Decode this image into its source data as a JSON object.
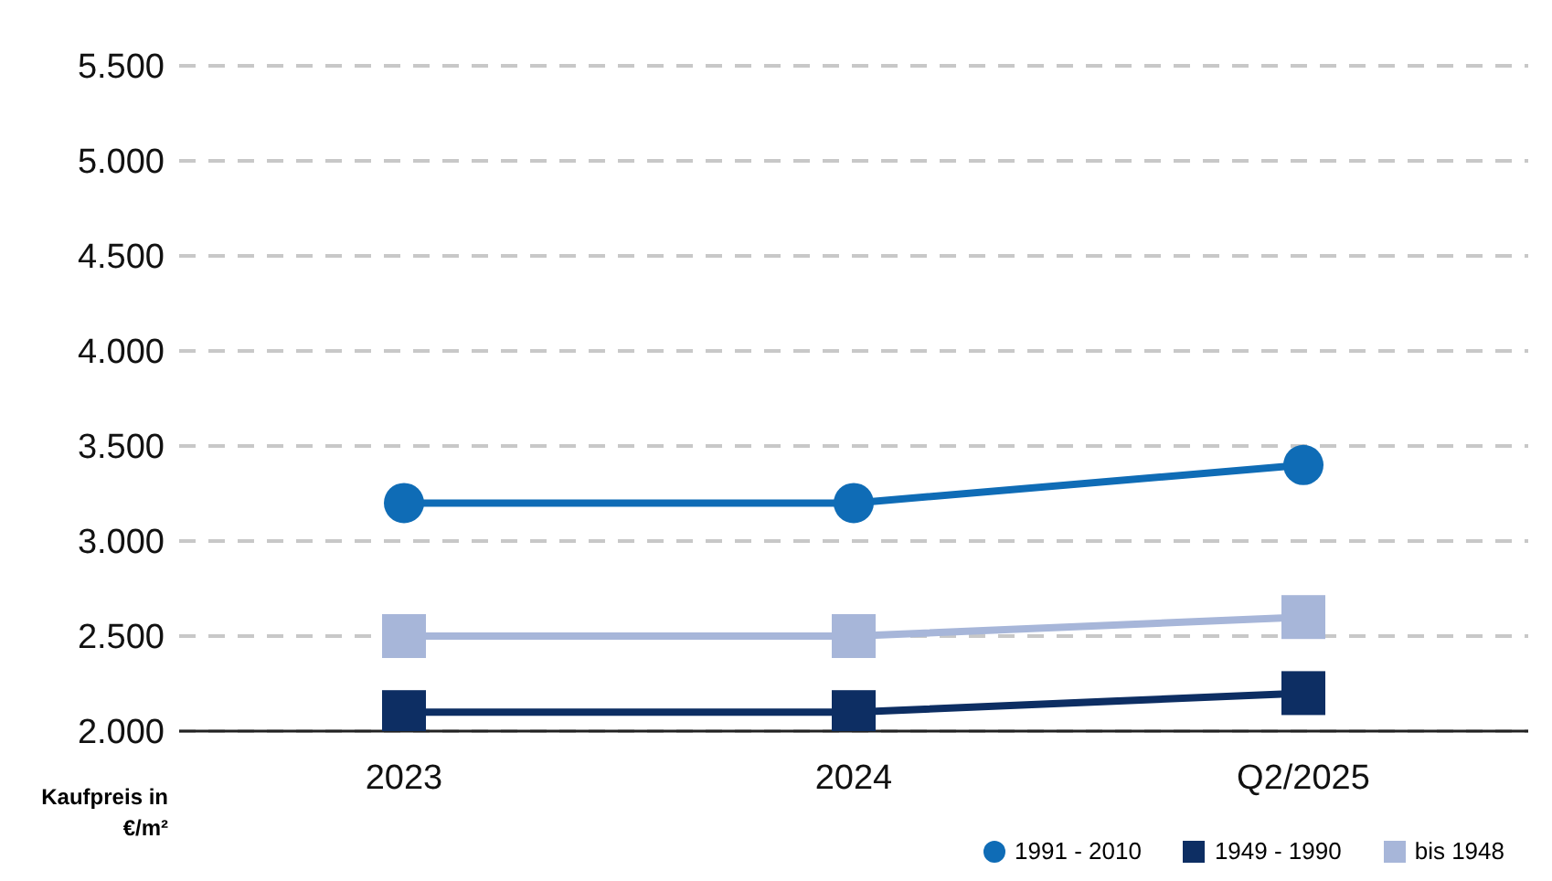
{
  "chart_data": {
    "type": "line",
    "ylabel": "Kaufpreis in €/m²",
    "categories": [
      "2023",
      "2024",
      "Q2/2025"
    ],
    "series": [
      {
        "name": "1991 - 2010",
        "color": "#0f6cb6",
        "values": [
          3200,
          3200,
          3400
        ],
        "marker": "circle"
      },
      {
        "name": "1949 - 1990",
        "color": "#0d2e63",
        "values": [
          2100,
          2100,
          2200
        ],
        "marker": "square"
      },
      {
        "name": "bis 1948",
        "color": "#a7b6d9",
        "values": [
          2500,
          2500,
          2600
        ],
        "marker": "square"
      }
    ],
    "ylim": [
      2000,
      5500
    ],
    "yticks": [
      {
        "value": 2000,
        "label": "2.000"
      },
      {
        "value": 2500,
        "label": "2.500"
      },
      {
        "value": 3000,
        "label": "3.000"
      },
      {
        "value": 3500,
        "label": "3.500"
      },
      {
        "value": 4000,
        "label": "4.000"
      },
      {
        "value": 4500,
        "label": "4.500"
      },
      {
        "value": 5000,
        "label": "5.000"
      },
      {
        "value": 5500,
        "label": "5.500"
      }
    ],
    "grid": "y",
    "legend": "bottom right",
    "line_style": "solid"
  }
}
